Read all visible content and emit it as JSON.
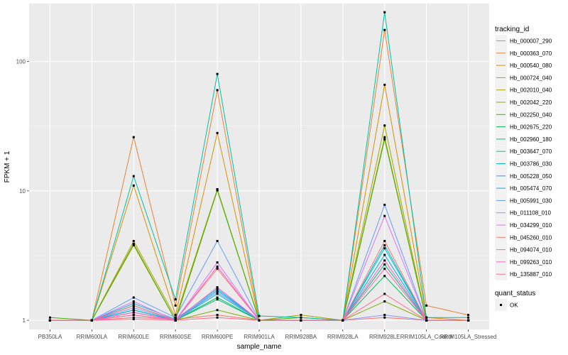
{
  "chart_data": {
    "type": "line",
    "y_scale": "log10",
    "y_transform": "value + 1",
    "ylabel": "FPKM + 1",
    "xlabel": "sample_name",
    "y_ticks": [
      1,
      10,
      100
    ],
    "y_tick_labels": [
      "1",
      "10",
      "100"
    ],
    "ylim": [
      0.85,
      280
    ],
    "grid": true,
    "legend_position": "right",
    "categories": [
      "PB350LA",
      "RRIM600LA",
      "RRIM600LE",
      "RRIM600SE",
      "RRIM600PE",
      "RRIM901LA",
      "RRIM928BA",
      "RRIM928LA",
      "RRIM928LE",
      "RRIM105LA_Control",
      "RRIM105LA_Stressed"
    ],
    "legend_title": "tracking_id",
    "legend2_title": "quant_status",
    "legend2_items": [
      {
        "label": "OK"
      }
    ],
    "series": [
      {
        "name": "Hb_000007_290",
        "color": "#F8766D",
        "values": [
          1.0,
          1.0,
          1.05,
          1.02,
          1.1,
          1.0,
          1.0,
          1.0,
          1.05,
          1.0,
          1.0
        ]
      },
      {
        "name": "Hb_000363_070",
        "color": "#EA8331",
        "values": [
          1.0,
          1.0,
          26,
          1.3,
          60,
          1.0,
          1.0,
          1.0,
          175,
          1.3,
          1.1
        ]
      },
      {
        "name": "Hb_000540_080",
        "color": "#D89000",
        "values": [
          1.0,
          1.0,
          11,
          1.1,
          28,
          1.0,
          1.0,
          1.0,
          66,
          1.05,
          1.0
        ]
      },
      {
        "name": "Hb_000724_040",
        "color": "#C09B00",
        "values": [
          1.0,
          1.0,
          4.1,
          1.05,
          10.3,
          1.0,
          1.0,
          1.0,
          26,
          1.0,
          1.0
        ]
      },
      {
        "name": "Hb_002010_040",
        "color": "#A3A500",
        "values": [
          1.0,
          1.0,
          3.8,
          1.0,
          10.2,
          1.0,
          1.1,
          1.0,
          32,
          1.0,
          1.0
        ]
      },
      {
        "name": "Hb_002042_220",
        "color": "#7CAE00",
        "values": [
          1.0,
          1.0,
          1.1,
          1.0,
          1.2,
          1.0,
          1.0,
          1.0,
          1.4,
          1.0,
          1.0
        ]
      },
      {
        "name": "Hb_002250_040",
        "color": "#39B600",
        "values": [
          1.05,
          1.0,
          3.9,
          1.0,
          10.1,
          1.0,
          1.05,
          1.0,
          25,
          1.0,
          1.0
        ]
      },
      {
        "name": "Hb_002675_220",
        "color": "#00BB4E",
        "values": [
          1.0,
          1.0,
          1.15,
          1.0,
          1.5,
          1.0,
          1.0,
          1.0,
          2.2,
          1.0,
          1.0
        ]
      },
      {
        "name": "Hb_002960_180",
        "color": "#00BF7D",
        "values": [
          1.0,
          1.0,
          1.2,
          1.0,
          1.45,
          1.0,
          1.0,
          1.0,
          2.7,
          1.0,
          1.0
        ]
      },
      {
        "name": "Hb_003647_070",
        "color": "#00C1A3",
        "values": [
          1.0,
          1.0,
          13,
          1.45,
          80,
          1.08,
          1.05,
          1.0,
          240,
          1.05,
          1.05
        ]
      },
      {
        "name": "Hb_003786_030",
        "color": "#00BFC4",
        "values": [
          1.0,
          1.0,
          1.3,
          1.0,
          1.6,
          1.0,
          1.0,
          1.0,
          3.6,
          1.0,
          1.0
        ]
      },
      {
        "name": "Hb_005228_050",
        "color": "#00B8E5",
        "values": [
          1.0,
          1.0,
          1.35,
          1.02,
          1.75,
          1.0,
          1.0,
          1.0,
          3.8,
          1.0,
          1.0
        ]
      },
      {
        "name": "Hb_005474_070",
        "color": "#00ABFD",
        "values": [
          1.0,
          1.0,
          1.2,
          1.0,
          1.7,
          1.0,
          1.0,
          1.0,
          3.2,
          1.0,
          1.0
        ]
      },
      {
        "name": "Hb_005991_030",
        "color": "#619CFF",
        "values": [
          1.0,
          1.0,
          1.5,
          1.05,
          4.1,
          1.0,
          1.0,
          1.0,
          7.8,
          1.0,
          1.0
        ]
      },
      {
        "name": "Hb_011108_010",
        "color": "#8B93FF",
        "values": [
          1.0,
          1.0,
          1.25,
          1.0,
          1.65,
          1.0,
          1.0,
          1.0,
          1.1,
          1.0,
          1.0
        ]
      },
      {
        "name": "Hb_034299_010",
        "color": "#DB72FB",
        "values": [
          1.0,
          1.0,
          1.4,
          1.0,
          2.8,
          1.0,
          1.0,
          1.0,
          6.4,
          1.0,
          1.0
        ]
      },
      {
        "name": "Hb_045260_010",
        "color": "#F8766D",
        "values": [
          1.0,
          1.0,
          1.3,
          1.0,
          2.5,
          1.0,
          1.0,
          1.0,
          4.1,
          1.0,
          1.0
        ]
      },
      {
        "name": "Hb_094074_010",
        "color": "#FF61C3",
        "values": [
          1.0,
          1.0,
          1.15,
          1.0,
          2.6,
          1.0,
          1.0,
          1.0,
          2.9,
          1.0,
          1.0
        ]
      },
      {
        "name": "Hb_099263_010",
        "color": "#FF62BC",
        "values": [
          1.0,
          1.0,
          1.1,
          1.0,
          1.8,
          1.0,
          1.0,
          1.0,
          2.5,
          1.0,
          1.0
        ]
      },
      {
        "name": "Hb_135887_010",
        "color": "#FF6C91",
        "values": [
          1.0,
          1.0,
          1.02,
          1.0,
          1.05,
          1.0,
          1.0,
          1.0,
          1.6,
          1.0,
          1.0
        ]
      }
    ]
  }
}
